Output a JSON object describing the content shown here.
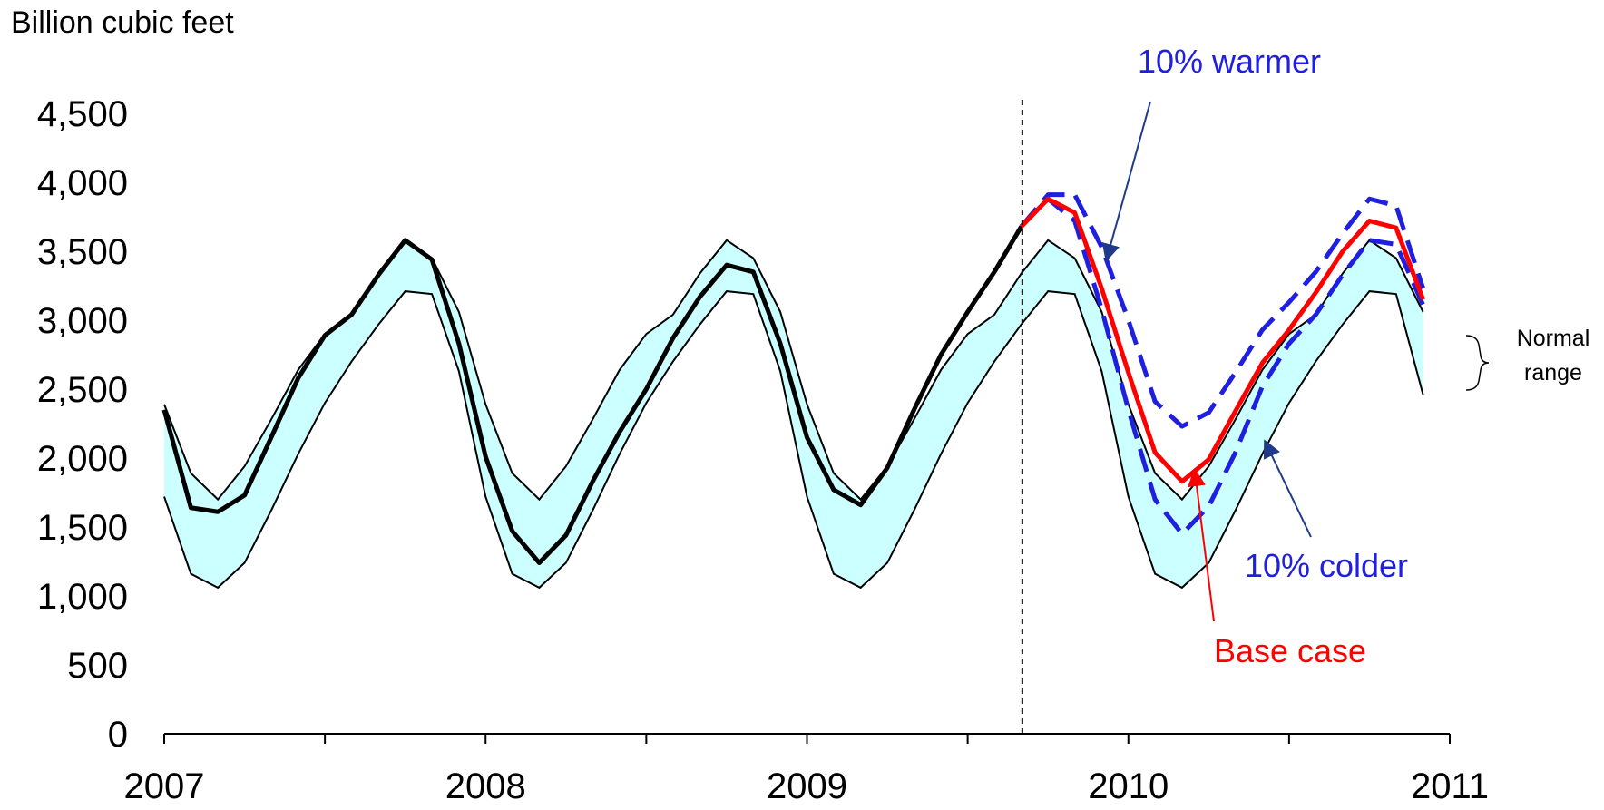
{
  "chart_data": {
    "type": "line",
    "ylabel": "Billion cubic feet",
    "ylim": [
      0,
      4500
    ],
    "y_ticks": [
      "0",
      "500",
      "1,000",
      "1,500",
      "2,000",
      "2,500",
      "3,000",
      "3,500",
      "4,000",
      "4,500"
    ],
    "x_ticks": [
      "2007",
      "2008",
      "2009",
      "2010",
      "2011"
    ],
    "forecast_start": 2009.67,
    "normal_range": {
      "label_line1": "Normal",
      "label_line2": "range",
      "color": "#ccffff",
      "x": [
        2007.0,
        2007.083,
        2007.167,
        2007.25,
        2007.333,
        2007.417,
        2007.5,
        2007.583,
        2007.667,
        2007.75,
        2007.833,
        2007.917,
        2008.0,
        2008.083,
        2008.167,
        2008.25,
        2008.333,
        2008.417,
        2008.5,
        2008.583,
        2008.667,
        2008.75,
        2008.833,
        2008.917,
        2009.0,
        2009.083,
        2009.167,
        2009.25,
        2009.333,
        2009.417,
        2009.5,
        2009.583,
        2009.667,
        2009.75,
        2009.833,
        2009.917,
        2010.0,
        2010.083,
        2010.167,
        2010.25,
        2010.333,
        2010.417,
        2010.5,
        2010.583,
        2010.667,
        2010.75,
        2010.833,
        2010.917
      ],
      "low": [
        1720,
        1160,
        1060,
        1240,
        1620,
        2030,
        2400,
        2700,
        2970,
        3210,
        3190,
        2630,
        1720,
        1160,
        1060,
        1240,
        1620,
        2030,
        2400,
        2700,
        2970,
        3210,
        3190,
        2630,
        1720,
        1160,
        1060,
        1240,
        1620,
        2030,
        2400,
        2700,
        2970,
        3210,
        3190,
        2630,
        1720,
        1160,
        1060,
        1240,
        1620,
        2030,
        2400,
        2700,
        2970,
        3210,
        3190,
        2460
      ],
      "high": [
        2390,
        1890,
        1700,
        1940,
        2280,
        2640,
        2900,
        3040,
        3340,
        3580,
        3450,
        3060,
        2390,
        1890,
        1700,
        1940,
        2280,
        2640,
        2900,
        3040,
        3340,
        3580,
        3450,
        3060,
        2390,
        1890,
        1700,
        1940,
        2280,
        2640,
        2900,
        3040,
        3340,
        3580,
        3450,
        3060,
        2390,
        1890,
        1700,
        1940,
        2280,
        2640,
        2900,
        3040,
        3340,
        3580,
        3450,
        3060
      ]
    },
    "series": [
      {
        "color": "#000000",
        "x": [
          2007.0,
          2007.083,
          2007.167,
          2007.25,
          2007.333,
          2007.417,
          2007.5,
          2007.583,
          2007.667,
          2007.75,
          2007.833,
          2007.917,
          2008.0,
          2008.083,
          2008.167,
          2008.25,
          2008.333,
          2008.417,
          2008.5,
          2008.583,
          2008.667,
          2008.75,
          2008.833,
          2008.917,
          2009.0,
          2009.083,
          2009.167,
          2009.25,
          2009.333,
          2009.417,
          2009.5,
          2009.583,
          2009.667
        ],
        "values": [
          2350,
          1640,
          1610,
          1730,
          2150,
          2580,
          2890,
          3040,
          3330,
          3580,
          3440,
          2830,
          2010,
          1470,
          1240,
          1440,
          1830,
          2190,
          2500,
          2870,
          3170,
          3400,
          3350,
          2830,
          2150,
          1770,
          1660,
          1930,
          2350,
          2750,
          3060,
          3350,
          3680
        ]
      },
      {
        "name": "Base case",
        "color": "#ff0000",
        "x": [
          2009.667,
          2009.75,
          2009.833,
          2009.917,
          2010.0,
          2010.083,
          2010.167,
          2010.25,
          2010.333,
          2010.417,
          2010.5,
          2010.583,
          2010.667,
          2010.75,
          2010.833,
          2010.917
        ],
        "values": [
          3680,
          3880,
          3780,
          3230,
          2620,
          2040,
          1830,
          1990,
          2340,
          2690,
          2930,
          3200,
          3500,
          3720,
          3670,
          3150
        ]
      },
      {
        "name": "10% warmer",
        "color": "#1f1fe0",
        "dashed": true,
        "x": [
          2009.667,
          2009.75,
          2009.833,
          2009.917,
          2010.0,
          2010.083,
          2010.167,
          2010.25,
          2010.333,
          2010.417,
          2010.5,
          2010.583,
          2010.667,
          2010.75,
          2010.833,
          2010.917
        ],
        "values": [
          3680,
          3910,
          3910,
          3530,
          3000,
          2410,
          2230,
          2330,
          2620,
          2930,
          3130,
          3350,
          3630,
          3880,
          3830,
          3230
        ]
      },
      {
        "name": "10% colder",
        "color": "#1f1fe0",
        "dashed": true,
        "x": [
          2009.667,
          2009.75,
          2009.833,
          2009.917,
          2010.0,
          2010.083,
          2010.167,
          2010.25,
          2010.333,
          2010.417,
          2010.5,
          2010.583,
          2010.667,
          2010.75,
          2010.833,
          2010.917
        ],
        "values": [
          3680,
          3880,
          3720,
          3080,
          2350,
          1700,
          1450,
          1650,
          2040,
          2520,
          2830,
          3040,
          3330,
          3580,
          3550,
          3110
        ]
      }
    ]
  }
}
